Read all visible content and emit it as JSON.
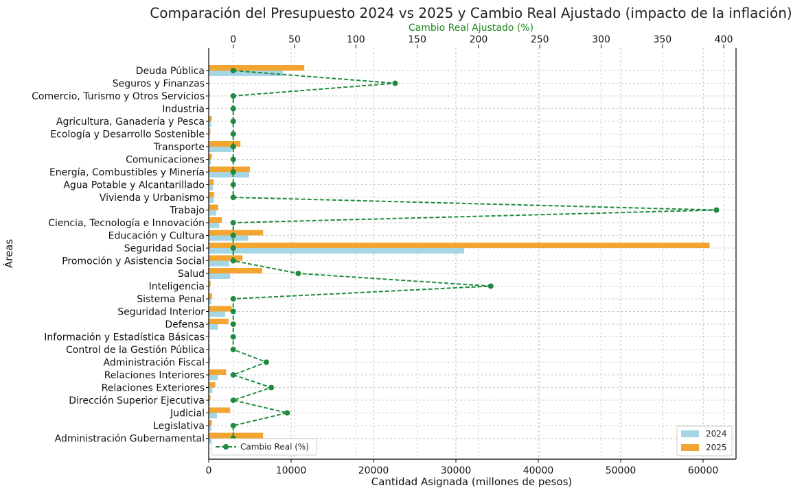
{
  "chart_data": {
    "type": "bar",
    "orientation": "horizontal",
    "title": "Comparación del Presupuesto 2024 vs 2025 y Cambio Real Ajustado (impacto de la inflación)",
    "xlabel": "Cantidad Asignada (millones de pesos)",
    "ylabel": "Áreas",
    "secondary_xlabel": "Cambio Real Ajustado (%)",
    "xlim": [
      0,
      64000
    ],
    "secondary_xlim": [
      -20,
      410
    ],
    "x_ticks": [
      "0",
      "10000",
      "20000",
      "30000",
      "40000",
      "50000",
      "60000"
    ],
    "secondary_x_ticks": [
      "0",
      "50",
      "100",
      "150",
      "200",
      "250",
      "300",
      "350",
      "400"
    ],
    "grid": true,
    "legend_bars_position": "bottom-right",
    "legend_line_position": "bottom-left",
    "colors": {
      "2024": "#a6d5e3",
      "2025": "#f2a530",
      "line": "#1e8a3e",
      "secondary_axis_label": "#1a8a1a"
    },
    "categories": [
      "Deuda Pública",
      "Seguros y Finanzas",
      "Comercio, Turismo y Otros Servicios",
      "Industria",
      "Agricultura, Ganadería y Pesca",
      "Ecología y Desarrollo Sostenible",
      "Transporte",
      "Comunicaciones",
      "Energía, Combustibles y Minería",
      "Agua Potable y Alcantarillado",
      "Vivienda y Urbanismo",
      "Trabajo",
      "Ciencia, Tecnología e Innovación",
      "Educación y Cultura",
      "Seguridad Social",
      "Promoción y Asistencia Social",
      "Salud",
      "Inteligencia",
      "Sistema Penal",
      "Seguridad Interior",
      "Defensa",
      "Información y Estadística Básicas",
      "Control de la Gestión Pública",
      "Administración Fiscal",
      "Relaciones Interiores",
      "Relaciones Exteriores",
      "Dirección Superior Ejecutiva",
      "Judicial",
      "Legislativa",
      "Administración Gubernamental"
    ],
    "series": [
      {
        "name": "2024",
        "values": [
          9000,
          50,
          100,
          50,
          300,
          150,
          2800,
          250,
          4900,
          500,
          600,
          900,
          1300,
          4800,
          31000,
          2500,
          2600,
          150,
          300,
          2000,
          1100,
          100,
          100,
          150,
          1100,
          450,
          150,
          1000,
          300,
          4500
        ]
      },
      {
        "name": "2025",
        "values": [
          11600,
          60,
          120,
          60,
          380,
          200,
          3850,
          380,
          5000,
          600,
          650,
          1150,
          1600,
          6600,
          60800,
          4100,
          6500,
          220,
          420,
          2800,
          2400,
          120,
          120,
          180,
          2100,
          800,
          220,
          2600,
          380,
          6600
        ]
      }
    ],
    "line_series": {
      "name": "Cambio Real (%)",
      "values": [
        0,
        132,
        0,
        0,
        0,
        0,
        0,
        0,
        0,
        0,
        0,
        394,
        0,
        0,
        0,
        0,
        53,
        210,
        0,
        0,
        0,
        0,
        0,
        27,
        0,
        31,
        0,
        44,
        0,
        0
      ]
    }
  }
}
